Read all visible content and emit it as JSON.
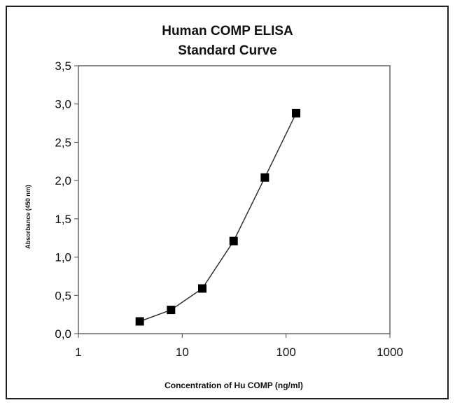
{
  "chart_data": {
    "type": "line",
    "title": "Human COMP ELISA",
    "subtitle": "Standard Curve",
    "xlabel": "Concentration of Hu COMP (ng/ml)",
    "ylabel": "Absorbance (450 nm)",
    "xscale": "log",
    "xlim": [
      1,
      1000
    ],
    "ylim": [
      0,
      3.5
    ],
    "xticks": [
      1,
      10,
      100,
      1000
    ],
    "xtick_labels": [
      "1",
      "10",
      "100",
      "1000"
    ],
    "yticks": [
      0,
      0.5,
      1,
      1.5,
      2,
      2.5,
      3,
      3.5
    ],
    "ytick_labels": [
      "0,0",
      "0,5",
      "1,0",
      "1,5",
      "2,0",
      "2,5",
      "3,0",
      "3,5"
    ],
    "grid": false,
    "marker": "square",
    "series": [
      {
        "x": [
          3.9,
          7.8,
          15.6,
          31.25,
          62.5,
          125
        ],
        "y": [
          0.16,
          0.31,
          0.59,
          1.21,
          2.04,
          2.88
        ],
        "color": "#000000"
      }
    ]
  }
}
